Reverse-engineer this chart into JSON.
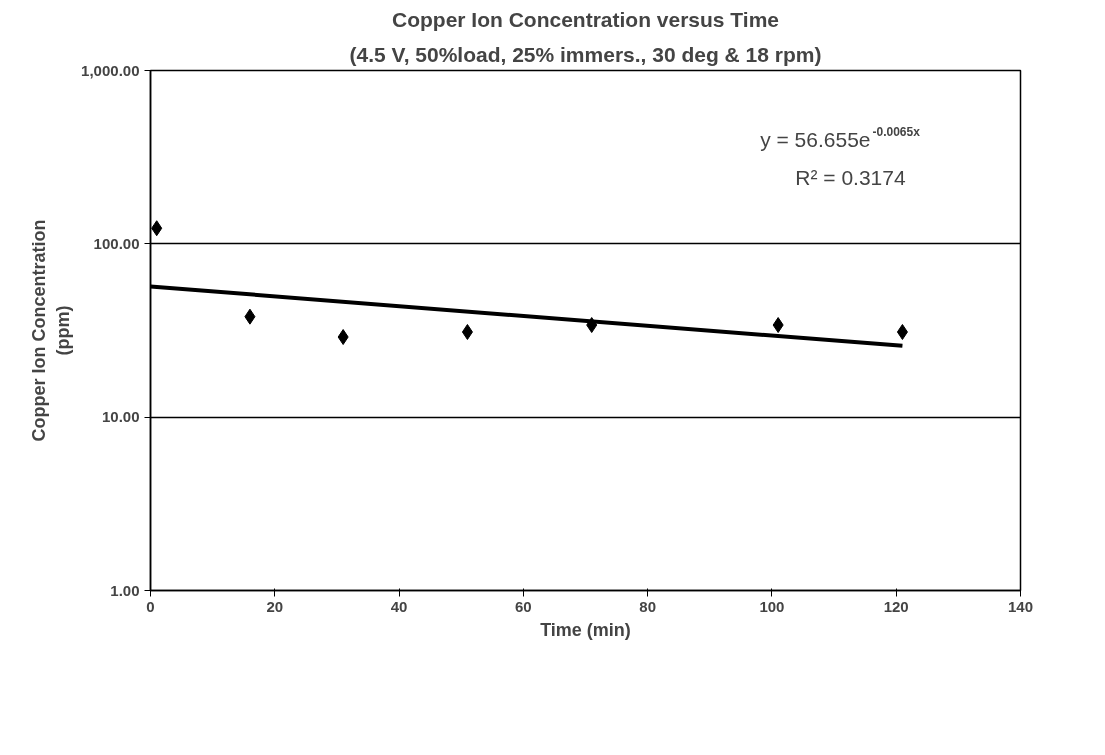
{
  "chart_data": {
    "type": "scatter",
    "title": "Copper Ion Concentration versus Time",
    "subtitle": "(4.5 V, 50%load, 25% immers., 30 deg & 18 rpm)",
    "xlabel": "Time (min)",
    "ylabel": "Copper Ion Concentration\n(ppm)",
    "x": [
      1,
      16,
      31,
      51,
      71,
      101,
      121
    ],
    "series": [
      {
        "color": "#000000",
        "marker": "diamond",
        "values": [
          123,
          38,
          29,
          31,
          34,
          34,
          31
        ]
      },
      {
        "type": "line",
        "color": "#000000",
        "line_style": "solid",
        "x": [
          0,
          121
        ],
        "values": [
          56.7,
          25.8
        ]
      }
    ],
    "annotations": [
      "y = 56.655e$^{-0.0065x}$",
      "R² = 0.3174"
    ],
    "xlim": [
      0,
      140
    ],
    "xticks": [
      0,
      20,
      40,
      60,
      80,
      100,
      120,
      140
    ],
    "ylim": [
      1,
      1000
    ],
    "log": "y",
    "yticks": [
      {
        "value": 1,
        "label": "1.00"
      },
      {
        "value": 10,
        "label": "10.00"
      },
      {
        "value": 100,
        "label": "100.00"
      },
      {
        "value": 1000,
        "label": "1,000.00"
      }
    ],
    "grid": "y"
  }
}
